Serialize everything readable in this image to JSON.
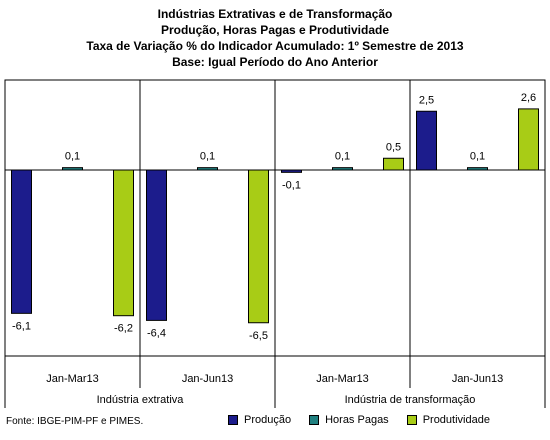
{
  "title_lines": [
    "Indústrias Extrativas e de Transformação",
    "Produção, Horas Pagas e Produtividade",
    "Taxa de Variação % do Indicador Acumulado: 1º Semestre de 2013",
    "Base: Igual Período do Ano Anterior"
  ],
  "source": "Fonte: IBGE-PIM-PF e PIMES.",
  "colors": {
    "producao": "#1c1c8c",
    "horas": "#208080",
    "produtividade": "#a8cc16"
  },
  "chart_data": {
    "type": "bar",
    "groups": [
      "Indústria extrativa",
      "Indústria de transformação"
    ],
    "categories": [
      "Jan-Mar13",
      "Jan-Jun13",
      "Jan-Mar13",
      "Jan-Jun13"
    ],
    "category_group": [
      0,
      0,
      1,
      1
    ],
    "series": [
      {
        "name": "Produção",
        "values": [
          -6.1,
          -6.4,
          -0.1,
          2.5
        ],
        "labels": [
          "-6,1",
          "-6,4",
          "-0,1",
          "2,5"
        ]
      },
      {
        "name": "Horas Pagas",
        "values": [
          0.1,
          0.1,
          0.1,
          0.1
        ],
        "labels": [
          "0,1",
          "0,1",
          "0,1",
          "0,1"
        ]
      },
      {
        "name": "Produtividade",
        "values": [
          -6.2,
          -6.5,
          0.5,
          2.6
        ],
        "labels": [
          "-6,2",
          "-6,5",
          "0,5",
          "2,6"
        ]
      }
    ],
    "legend_position": "bottom-right",
    "grid": false
  }
}
